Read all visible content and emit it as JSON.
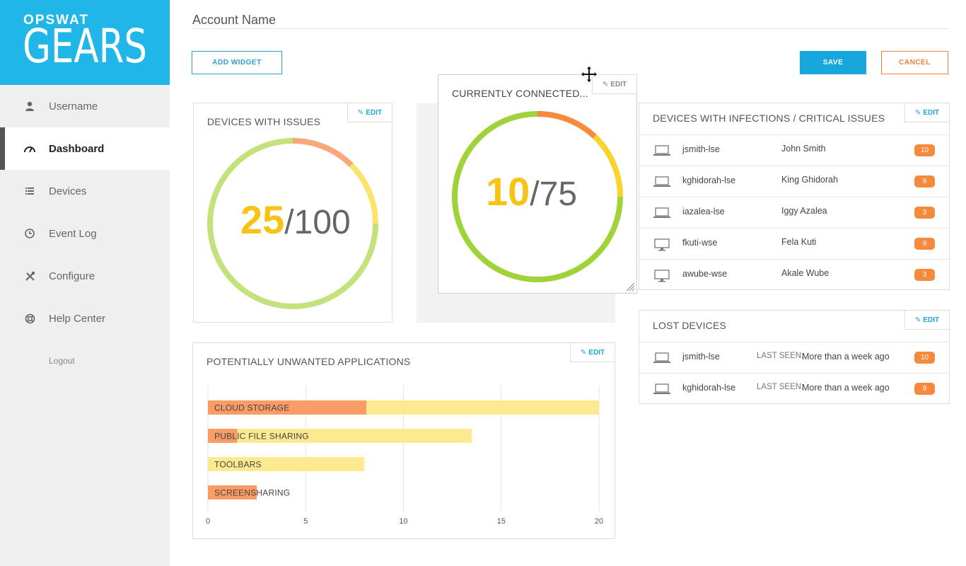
{
  "brand": {
    "top": "OPSWAT",
    "big": "GEARS"
  },
  "sidebar": {
    "items": [
      {
        "label": "Username",
        "icon": "user-icon"
      },
      {
        "label": "Dashboard",
        "icon": "speedometer-icon",
        "active": true
      },
      {
        "label": "Devices",
        "icon": "list-icon"
      },
      {
        "label": "Event Log",
        "icon": "clock-icon"
      },
      {
        "label": "Configure",
        "icon": "tools-icon"
      },
      {
        "label": "Help Center",
        "icon": "lifebuoy-icon"
      }
    ],
    "logout": "Logout"
  },
  "header": {
    "account_name": "Account Name",
    "add_widget": "ADD WIDGET",
    "save": "SAVE",
    "cancel": "CANCEL"
  },
  "edit_label": "EDIT",
  "widgets": {
    "devices_issues": {
      "title": "DEVICES WITH ISSUES",
      "value": "25",
      "total": "/100"
    },
    "connected": {
      "title": "CURRENTLY CONNECTED...",
      "value": "10",
      "total": "/75"
    },
    "infections": {
      "title": "DEVICES WITH INFECTIONS / CRITICAL ISSUES",
      "rows": [
        {
          "host": "jsmith-lse",
          "name": "John Smith",
          "count": "10",
          "device": "laptop-icon"
        },
        {
          "host": "kghidorah-lse",
          "name": "King Ghidorah",
          "count": "9",
          "device": "laptop-icon"
        },
        {
          "host": "iazalea-lse",
          "name": "Iggy Azalea",
          "count": "3",
          "device": "laptop-icon"
        },
        {
          "host": "fkuti-wse",
          "name": "Fela Kuti",
          "count": "9",
          "device": "desktop-icon"
        },
        {
          "host": "awube-wse",
          "name": "Akale Wube",
          "count": "3",
          "device": "desktop-icon"
        }
      ]
    },
    "lost": {
      "title": "LOST DEVICES",
      "rows": [
        {
          "host": "jsmith-lse",
          "seen_label": "LAST SEEN:",
          "seen": "More than a week ago",
          "count": "10"
        },
        {
          "host": "kghidorah-lse",
          "seen_label": "LAST SEEN:",
          "seen": "More than a week ago",
          "count": "9"
        }
      ]
    },
    "pua": {
      "title": "POTENTIALLY UNWANTED APPLICATIONS"
    }
  },
  "colors": {
    "accent": "#20b6e8",
    "orange": "#f68a3c",
    "yellow": "#f7c416",
    "green": "#a3d13f",
    "bar_orange": "#fa9c66",
    "bar_yellow": "#fde98f"
  },
  "chart_data": {
    "type": "bar",
    "orientation": "horizontal",
    "stacked": false,
    "categories": [
      "CLOUD STORAGE",
      "PUBLIC FILE SHARING",
      "TOOLBARS",
      "SCREENSHARING"
    ],
    "series": [
      {
        "values": [
          20,
          13.5,
          8,
          0
        ]
      },
      {
        "values": [
          8.1,
          1.5,
          0,
          2.5
        ]
      }
    ],
    "xticks": [
      "0",
      "5",
      "10",
      "15",
      "20"
    ],
    "xlim": [
      0,
      20
    ],
    "grid": true
  }
}
